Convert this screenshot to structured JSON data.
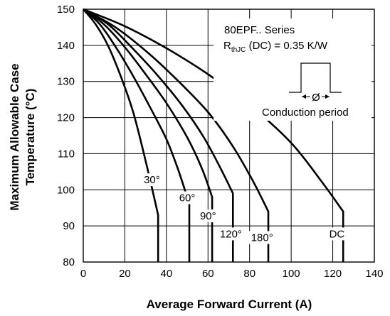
{
  "chart_data": {
    "type": "line",
    "title": "",
    "xlabel": "Average Forward Current (A)",
    "ylabel_line1": "Maximum Allowable Case",
    "ylabel_line2": "Temperature (°C)",
    "xlim": [
      0,
      140
    ],
    "ylim": [
      80,
      150
    ],
    "x_ticks": [
      0,
      20,
      40,
      60,
      80,
      100,
      120,
      140
    ],
    "y_ticks": [
      80,
      90,
      100,
      110,
      120,
      130,
      140,
      150
    ],
    "grid": true,
    "annotation": {
      "series_title": "80EPF.. Series",
      "rth_main": "R",
      "rth_sub": "thJC",
      "rth_rest": " (DC) = 0.35 K/W",
      "phi_symbol": "Ø",
      "conduction_label": "Conduction period"
    },
    "series": [
      {
        "label": "30°",
        "points": [
          [
            0,
            150
          ],
          [
            6,
            145.8
          ],
          [
            12,
            139.8
          ],
          [
            18,
            131.5
          ],
          [
            24,
            121.5
          ],
          [
            30,
            108
          ],
          [
            36,
            93
          ],
          [
            36,
            80
          ]
        ]
      },
      {
        "label": "60°",
        "points": [
          [
            0,
            150
          ],
          [
            8,
            145.8
          ],
          [
            16,
            139.2
          ],
          [
            24,
            131.5
          ],
          [
            32,
            123
          ],
          [
            40,
            114
          ],
          [
            46,
            105
          ],
          [
            51,
            96
          ],
          [
            51,
            80
          ]
        ]
      },
      {
        "label": "90°",
        "points": [
          [
            0,
            150
          ],
          [
            10,
            145.8
          ],
          [
            20,
            139.5
          ],
          [
            30,
            132
          ],
          [
            40,
            124
          ],
          [
            50,
            114.5
          ],
          [
            57,
            106
          ],
          [
            62,
            98
          ],
          [
            62,
            80
          ]
        ]
      },
      {
        "label": "120°",
        "points": [
          [
            0,
            150
          ],
          [
            12,
            145.8
          ],
          [
            24,
            139
          ],
          [
            36,
            131.5
          ],
          [
            48,
            123
          ],
          [
            58,
            114.5
          ],
          [
            66,
            106
          ],
          [
            72,
            99
          ],
          [
            72,
            80
          ]
        ]
      },
      {
        "label": "180°",
        "points": [
          [
            0,
            150
          ],
          [
            15,
            145.2
          ],
          [
            30,
            138.5
          ],
          [
            45,
            130.5
          ],
          [
            60,
            121.5
          ],
          [
            72,
            112
          ],
          [
            82,
            102
          ],
          [
            89,
            94
          ],
          [
            89,
            80
          ]
        ]
      },
      {
        "label": "DC",
        "points": [
          [
            0,
            150
          ],
          [
            20,
            145.3
          ],
          [
            40,
            139.2
          ],
          [
            60,
            132
          ],
          [
            80,
            123.5
          ],
          [
            100,
            113
          ],
          [
            115,
            102
          ],
          [
            125,
            94
          ],
          [
            125,
            80
          ]
        ]
      }
    ],
    "curve_labels": [
      {
        "text": "30°",
        "x": 33,
        "y": 102
      },
      {
        "text": "60°",
        "x": 50,
        "y": 97
      },
      {
        "text": "90°",
        "x": 60,
        "y": 92
      },
      {
        "text": "120°",
        "x": 71,
        "y": 87
      },
      {
        "text": "180°",
        "x": 86,
        "y": 86
      },
      {
        "text": "DC",
        "x": 122,
        "y": 87
      }
    ]
  }
}
